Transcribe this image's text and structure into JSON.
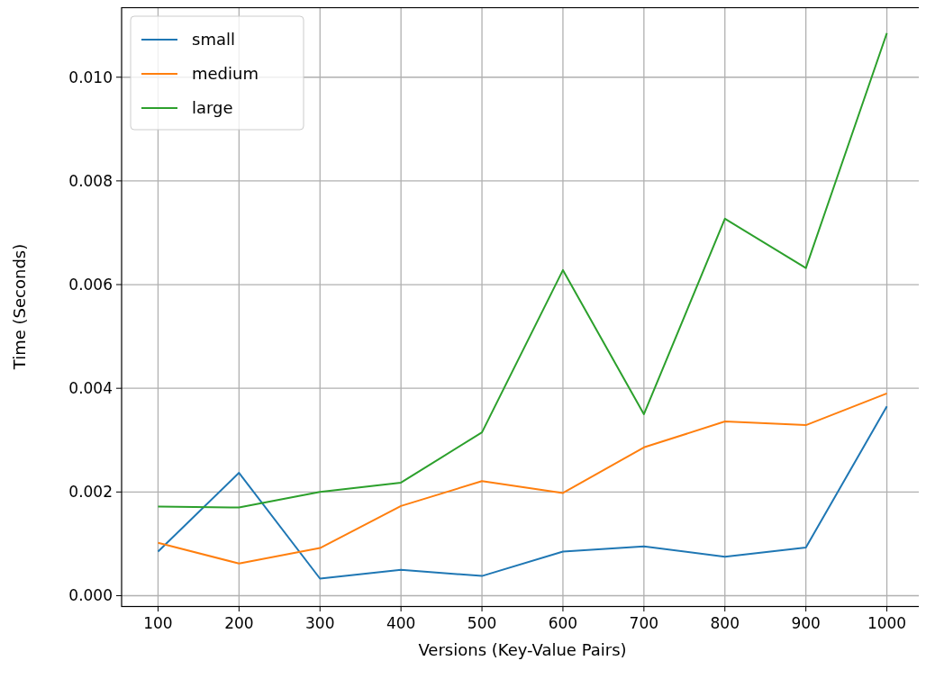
{
  "chart_data": {
    "type": "line",
    "xlabel": "Versions (Key-Value Pairs)",
    "ylabel": "Time (Seconds)",
    "x": [
      100,
      200,
      300,
      400,
      500,
      600,
      700,
      800,
      900,
      1000
    ],
    "series": [
      {
        "name": "small",
        "color": "#1f77b4",
        "values": [
          0.00085,
          0.00237,
          0.00033,
          0.0005,
          0.00038,
          0.00085,
          0.00095,
          0.00075,
          0.00093,
          0.00365
        ]
      },
      {
        "name": "medium",
        "color": "#ff7f0e",
        "values": [
          0.00102,
          0.00062,
          0.00092,
          0.00173,
          0.00221,
          0.00198,
          0.00286,
          0.00336,
          0.00329,
          0.0039
        ]
      },
      {
        "name": "large",
        "color": "#2ca02c",
        "values": [
          0.00172,
          0.0017,
          0.002,
          0.00218,
          0.00315,
          0.00628,
          0.0035,
          0.00727,
          0.00632,
          0.01085
        ]
      }
    ],
    "xlim": [
      55,
      1045
    ],
    "xticks": [
      100,
      200,
      300,
      400,
      500,
      600,
      700,
      800,
      900,
      1000
    ],
    "ylim": [
      -0.0002,
      0.01135
    ],
    "yticks": [
      {
        "value": 0,
        "label": "0.000"
      },
      {
        "value": 0.002,
        "label": "0.002"
      },
      {
        "value": 0.004,
        "label": "0.004"
      },
      {
        "value": 0.006,
        "label": "0.006"
      },
      {
        "value": 0.008,
        "label": "0.008"
      },
      {
        "value": 0.01,
        "label": "0.010"
      }
    ],
    "grid": true,
    "legend": "top left",
    "marker": "none",
    "line_style": "solid"
  }
}
